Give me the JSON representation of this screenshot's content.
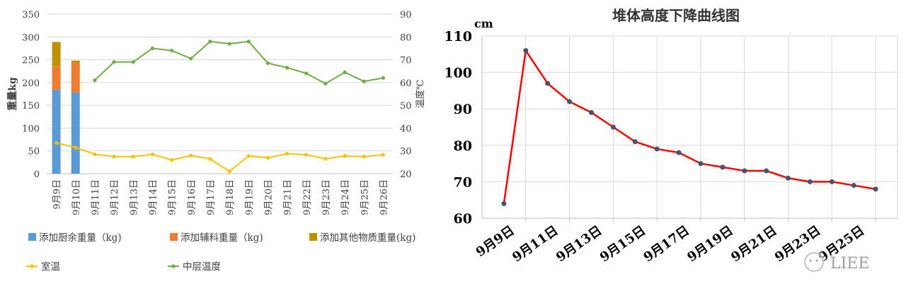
{
  "chart_data": [
    {
      "type": "bar+line",
      "categories": [
        "9月9日",
        "9月10日",
        "9月11日",
        "9月12日",
        "9月13日",
        "9月14日",
        "9月15日",
        "9月16日",
        "9月17日",
        "9月18日",
        "9月19日",
        "9月20日",
        "9月21日",
        "9月22日",
        "9月23日",
        "9月24日",
        "9月25日",
        "9月26日"
      ],
      "ylabel": "重量kg",
      "y2label": "温度℃",
      "ylim": [
        0,
        350
      ],
      "y2lim": [
        20,
        90
      ],
      "yticks": [
        "0",
        "50",
        "100",
        "150",
        "200",
        "250",
        "300",
        "350"
      ],
      "y2ticks": [
        "20",
        "30",
        "40",
        "50",
        "60",
        "70",
        "80",
        "90"
      ],
      "bar_series": [
        {
          "name": "添加厨余重量（kg)",
          "color": "#5b9bd5",
          "values": [
            184,
            178,
            null,
            null,
            null,
            null,
            null,
            null,
            null,
            null,
            null,
            null,
            null,
            null,
            null,
            null,
            null,
            null
          ]
        },
        {
          "name": "添加辅料重量（kg)",
          "color": "#ed7d31",
          "values": [
            52,
            64,
            null,
            null,
            null,
            null,
            null,
            null,
            null,
            null,
            null,
            null,
            null,
            null,
            null,
            null,
            null,
            null
          ]
        },
        {
          "name": "添加其他物质重量(kg)",
          "color": "#bf9000",
          "values": [
            53,
            6,
            null,
            null,
            null,
            null,
            null,
            null,
            null,
            null,
            null,
            null,
            null,
            null,
            null,
            null,
            null,
            null
          ]
        }
      ],
      "line_series": [
        {
          "name": "室温",
          "color": "#ffc000",
          "axis": "right",
          "values": [
            33.5,
            31.5,
            28.5,
            27.5,
            27.5,
            28.5,
            26,
            28,
            26.5,
            21,
            27.8,
            27,
            28.8,
            28.3,
            26.5,
            27.8,
            27.5,
            28.3
          ]
        },
        {
          "name": "中层温度",
          "color": "#70ad47",
          "axis": "right",
          "values": [
            null,
            null,
            61,
            69,
            69,
            75,
            74,
            70.5,
            78,
            77,
            78,
            68.5,
            66.5,
            64,
            59.5,
            64.5,
            60.5,
            62
          ]
        }
      ],
      "legend_position": "bottom"
    },
    {
      "type": "line",
      "title": "堆体高度下降曲线图",
      "ylabel": "cm",
      "ylim": [
        60,
        110
      ],
      "yticks": [
        "60",
        "70",
        "80",
        "90",
        "100",
        "110"
      ],
      "x": [
        1,
        2,
        3,
        4,
        5,
        6,
        7,
        8,
        9,
        10,
        11,
        12,
        13,
        14,
        15,
        16,
        17,
        18
      ],
      "values": [
        64,
        106,
        97,
        92,
        89,
        85,
        81,
        79,
        78,
        75,
        74,
        73,
        73,
        71,
        70,
        70,
        69,
        68
      ],
      "xtick_labels": [
        "9月9日",
        "9月11日",
        "9月13日",
        "9月15日",
        "9月17日",
        "9月19日",
        "9月21日",
        "9月23日",
        "9月25日"
      ],
      "xtick_positions": [
        1,
        3,
        5,
        7,
        9,
        11,
        13,
        15,
        17
      ],
      "line_color": "#ff0000",
      "marker_color": "#44546a",
      "grid": true
    }
  ],
  "watermark": {
    "text": "LIEE"
  }
}
